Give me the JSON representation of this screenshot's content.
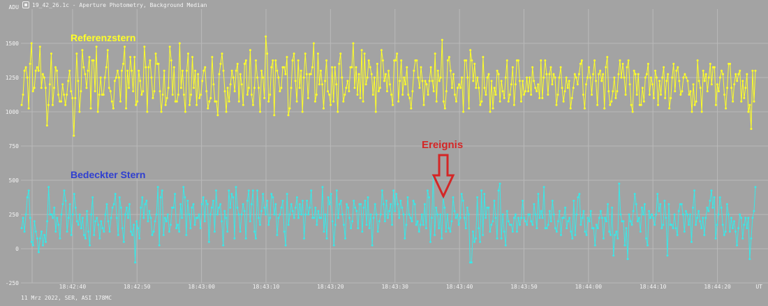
{
  "window": {
    "title": "19_42_26.1c - Aperture Photometry, Background Median"
  },
  "footer": {
    "caption": "11 Mrz 2022, SER, ASI 178MC"
  },
  "colors": {
    "background": "#a3a3a3",
    "grid": "#bababa",
    "axis_text": "#f4f4f4",
    "reference_series": "#ffff26",
    "occulted_series": "#39e8e8",
    "reference_label": "#ffff26",
    "occulted_label": "#2f3fd0",
    "event_label": "#d42626",
    "event_arrow": "#d42626"
  },
  "chart_data": {
    "type": "line",
    "ylabel": "ADU",
    "xlabel": "UT",
    "ylim": [
      -250,
      1750
    ],
    "yticks": [
      -250,
      0,
      250,
      500,
      750,
      1000,
      1250,
      1500
    ],
    "xticks": [
      "18:42:40",
      "18:42:50",
      "18:43:00",
      "18:43:10",
      "18:43:20",
      "18:43:30",
      "18:43:40",
      "18:43:50",
      "18:44:00",
      "18:44:10",
      "18:44:20"
    ],
    "x_start": "18:42:32.0",
    "x_end": "18:44:26.0",
    "sample_interval_s": 0.25,
    "grid": true,
    "series": [
      {
        "name": "Referenzstern",
        "color": "#ffff26",
        "values": [
          1050,
          1125,
          1300,
          1325,
          1250,
          1025,
          1350,
          1500,
          1150,
          1175,
          1300,
          1325,
          1300,
          1475,
          1175,
          1275,
          1250,
          1175,
          900,
          1050,
          1200,
          1425,
          1050,
          1175,
          1325,
          1300,
          1125,
          1075,
          1075,
          1200,
          1125,
          1050,
          1125,
          1225,
          1300,
          1150,
          1100,
          825,
          1100,
          1425,
          1225,
          1000,
          1150,
          1450,
          1325,
          1275,
          1175,
          1300,
          1400,
          1025,
          1375,
          1375,
          1150,
          1475,
          1000,
          1125,
          1250,
          1125,
          1125,
          1250,
          1325,
          1450,
          1175,
          1150,
          1075,
          1025,
          1225,
          1250,
          1300,
          1250,
          1075,
          1300,
          1350,
          1475,
          1025,
          1300,
          1175,
          1400,
          1300,
          1150,
          1400,
          1050,
          1075,
          1300,
          1225,
          1125,
          1150,
          1475,
          1325,
          1000,
          1325,
          1375,
          1250,
          1100,
          1150,
          1425,
          1350,
          1350,
          1150,
          1000,
          1125,
          1300,
          1050,
          1100,
          1175,
          1475,
          1375,
          1125,
          1325,
          1075,
          1075,
          1125,
          1500,
          1175,
          1300,
          1125,
          1000,
          1300,
          1425,
          1050,
          1125,
          1400,
          1175,
          1300,
          1050,
          1275,
          1100,
          1125,
          1225,
          1300,
          1325,
          1150,
          1025,
          1075,
          1100,
          1400,
          1200,
          1075,
          1075,
          975,
          1275,
          1350,
          1425,
          1300,
          1150,
          1000,
          1175,
          1075,
          1200,
          1300,
          1250,
          1150,
          1300,
          1350,
          1075,
          1275,
          1200,
          1050,
          1350,
          1375,
          1125,
          1175,
          1450,
          1125,
          1050,
          1175,
          1375,
          1250,
          1175,
          1000,
          1300,
          1250,
          1100,
          1550,
          1425,
          1075,
          1125,
          1325,
          1375,
          975,
          1375,
          1300,
          1250,
          1150,
          1175,
          1325,
          1325,
          1275,
          1400,
          975,
          1025,
          1175,
          1375,
          1425,
          1225,
          1075,
          1375,
          1175,
          1300,
          1000,
          1250,
          1425,
          1275,
          1100,
          1275,
          1275,
          1325,
          1500,
          1075,
          1125,
          1425,
          1200,
          1300,
          1200,
          1025,
          1225,
          1375,
          1150,
          1125,
          1050,
          1325,
          1075,
          1325,
          1200,
          1000,
          1350,
          1425,
          1250,
          1075,
          1125,
          1175,
          1225,
          1150,
          1325,
          1325,
          1500,
          1175,
          1325,
          1125,
          1275,
          1100,
          1450,
          1075,
          1425,
          1200,
          1250,
          1375,
          1325,
          1275,
          1125,
          1250,
          1000,
          1350,
          1150,
          1175,
          1450,
          1375,
          1225,
          1275,
          1150,
          1300,
          1200,
          1125,
          1050,
          1375,
          1375,
          1425,
          1075,
          1225,
          1375,
          1125,
          1250,
          1200,
          1325,
          1125,
          1100,
          1025,
          1150,
          1300,
          1375,
          1375,
          1250,
          1175,
          1325,
          1225,
          1050,
          1225,
          1200,
          1125,
          1225,
          1325,
          1225,
          1150,
          1425,
          1075,
          1300,
          1225,
          1250,
          1525,
          1075,
          1025,
          1150,
          1375,
          1400,
          1300,
          1175,
          1275,
          1125,
          1075,
          1175,
          1200,
          1175,
          1250,
          1000,
          1375,
          1375,
          1250,
          1025,
          1450,
          1375,
          1225,
          1350,
          1175,
          1250,
          1175,
          1050,
          1075,
          1400,
          1175,
          1125,
          1250,
          1275,
          1000,
          1225,
          1025,
          1175,
          1125,
          1300,
          1275,
          1075,
          1225,
          1150,
          1100,
          1250,
          1375,
          1075,
          1125,
          1200,
          1325,
          1050,
          1200,
          1375,
          1375,
          1225,
          1075,
          1225,
          1125,
          1150,
          1250,
          1150,
          1250,
          1125,
          1325,
          1225,
          1175,
          1150,
          1200,
          1100,
          1375,
          1100,
          1250,
          1375,
          1275,
          1125,
          1275,
          1325,
          1200,
          1275,
          1250,
          1050,
          1125,
          1250,
          1325,
          1175,
          1075,
          1150,
          1250,
          1175,
          1225,
          1025,
          1100,
          1175,
          1275,
          1250,
          1200,
          1275,
          1350,
          1375,
          1125,
          1025,
          1200,
          1250,
          1325,
          1250,
          1125,
          1275,
          1375,
          1225,
          1050,
          1275,
          1300,
          1225,
          1275,
          1025,
          1325,
          1400,
          1150,
          1050,
          1075,
          1150,
          1250,
          1100,
          1150,
          1275,
          1375,
          1250,
          1350,
          1250,
          1125,
          1325,
          1375,
          1200,
          1050,
          1000,
          1300,
          1275,
          1125,
          1275,
          1050,
          1050,
          1175,
          1075,
          1250,
          1275,
          1350,
          1125,
          1250,
          1200,
          1100,
          1300,
          1250,
          1050,
          1225,
          1125,
          1250,
          1325,
          1100,
          1225,
          1275,
          1025,
          1100,
          1250,
          1350,
          1150,
          1300,
          1325,
          1225,
          1125,
          1150,
          1250,
          1275,
          1250,
          1225,
          1125,
          1150,
          1000,
          1200,
          1050,
          1075,
          1375,
          1225,
          1175,
          1000,
          1300,
          1225,
          1275,
          1150,
          1250,
          1350,
          1200,
          1325,
          1325,
          1050,
          1200,
          1150,
          1250,
          1300,
          1275,
          1125,
          1025,
          1175,
          1350,
          1350,
          1175,
          1075,
          1200,
          1275,
          1225,
          1275,
          1300,
          1075,
          1225,
          1100,
          1175,
          1275,
          1000,
          1050,
          875,
          1300,
          1075,
          1300
        ]
      },
      {
        "name": "Bedeckter Stern",
        "color": "#39e8e8",
        "values": [
          150,
          225,
          125,
          250,
          375,
          425,
          225,
          50,
          25,
          200,
          125,
          75,
          -25,
          75,
          125,
          25,
          100,
          50,
          200,
          450,
          250,
          250,
          225,
          300,
          125,
          225,
          175,
          75,
          250,
          325,
          425,
          350,
          125,
          225,
          325,
          100,
          250,
          400,
          300,
          200,
          175,
          250,
          150,
          225,
          100,
          75,
          275,
          125,
          25,
          250,
          375,
          100,
          200,
          225,
          175,
          75,
          200,
          150,
          125,
          250,
          325,
          200,
          125,
          225,
          300,
          325,
          400,
          225,
          100,
          375,
          300,
          150,
          50,
          250,
          300,
          225,
          325,
          125,
          100,
          175,
          -100,
          200,
          150,
          75,
          300,
          375,
          225,
          325,
          350,
          200,
          275,
          225,
          100,
          125,
          200,
          250,
          450,
          25,
          375,
          425,
          100,
          225,
          200,
          250,
          125,
          175,
          300,
          300,
          400,
          150,
          175,
          125,
          325,
          225,
          450,
          375,
          100,
          350,
          250,
          150,
          300,
          325,
          175,
          225,
          225,
          250,
          150,
          325,
          375,
          200,
          350,
          325,
          50,
          250,
          300,
          350,
          125,
          425,
          250,
          300,
          325,
          200,
          25,
          275,
          225,
          125,
          425,
          300,
          400,
          375,
          75,
          450,
          300,
          250,
          125,
          250,
          325,
          275,
          75,
          350,
          425,
          200,
          325,
          425,
          125,
          75,
          425,
          225,
          175,
          275,
          400,
          300,
          250,
          350,
          175,
          225,
          400,
          375,
          250,
          325,
          100,
          225,
          250,
          300,
          350,
          125,
          25,
          400,
          175,
          250,
          325,
          275,
          225,
          300,
          375,
          225,
          325,
          250,
          350,
          75,
          250,
          350,
          250,
          300,
          425,
          225,
          225,
          300,
          175,
          275,
          225,
          225,
          450,
          125,
          250,
          75,
          375,
          325,
          400,
          200,
          25,
          175,
          425,
          225,
          325,
          350,
          250,
          175,
          75,
          325,
          300,
          225,
          150,
          200,
          350,
          300,
          275,
          150,
          325,
          325,
          125,
          300,
          350,
          175,
          375,
          150,
          250,
          25,
          225,
          325,
          250,
          125,
          200,
          250,
          425,
          325,
          200,
          350,
          225,
          275,
          325,
          175,
          425,
          275,
          400,
          325,
          225,
          350,
          300,
          250,
          75,
          175,
          375,
          250,
          225,
          200,
          350,
          325,
          175,
          200,
          125,
          175,
          250,
          175,
          325,
          150,
          425,
          375,
          50,
          225,
          525,
          100,
          300,
          250,
          150,
          250,
          75,
          375,
          300,
          125,
          250,
          150,
          125,
          200,
          375,
          275,
          225,
          250,
          175,
          225,
          400,
          350,
          225,
          150,
          300,
          250,
          -100,
          -100,
          125,
          50,
          75,
          375,
          150,
          50,
          425,
          100,
          400,
          225,
          300,
          300,
          125,
          175,
          200,
          350,
          225,
          75,
          425,
          475,
          75,
          250,
          125,
          25,
          275,
          200,
          175,
          175,
          125,
          225,
          250,
          125,
          225,
          175,
          225,
          350,
          225,
          200,
          175,
          250,
          250,
          200,
          175,
          325,
          250,
          150,
          400,
          225,
          275,
          225,
          450,
          150,
          150,
          175,
          275,
          200,
          350,
          250,
          150,
          125,
          200,
          275,
          100,
          225,
          225,
          300,
          150,
          200,
          225,
          125,
          75,
          350,
          100,
          250,
          375,
          400,
          175,
          225,
          275,
          125,
          100,
          225,
          200,
          275,
          150,
          150,
          25,
          175,
          150,
          225,
          275,
          225,
          75,
          225,
          200,
          325,
          125,
          100,
          300,
          -50,
          100,
          125,
          75,
          475,
          250,
          200,
          200,
          25,
          150,
          -75,
          250,
          200,
          175,
          275,
          400,
          325,
          200,
          225,
          125,
          300,
          250,
          325,
          75,
          25,
          275,
          225,
          250,
          225,
          175,
          250,
          400,
          275,
          325,
          150,
          175,
          350,
          225,
          -50,
          325,
          175,
          175,
          150,
          250,
          150,
          100,
          275,
          325,
          325,
          250,
          125,
          275,
          250,
          175,
          250,
          50,
          300,
          425,
          175,
          225,
          275,
          200,
          150,
          225,
          100,
          225,
          300,
          275,
          350,
          425,
          300,
          375,
          75,
          175,
          250,
          375,
          300,
          175,
          100,
          125,
          325,
          250,
          125,
          225,
          150,
          200,
          125,
          25,
          150,
          250,
          225,
          75,
          175,
          225,
          150,
          225,
          -75,
          75,
          225,
          275,
          450
        ]
      }
    ],
    "annotations": {
      "reference_label": "Referenzstern",
      "occulted_label": "Bedeckter Stern",
      "event_label": "Ereignis",
      "event_time": "18:43:35.6"
    }
  }
}
